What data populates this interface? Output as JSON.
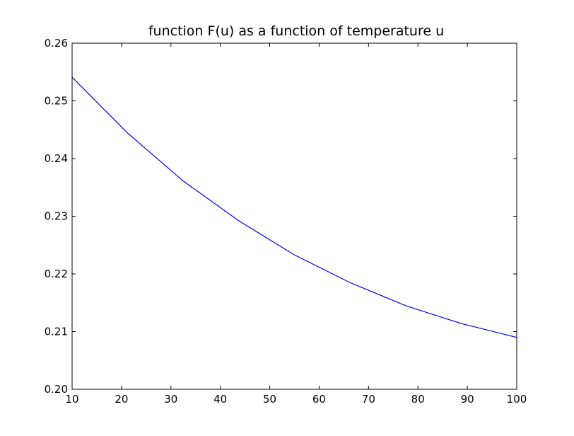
{
  "chart_data": {
    "type": "line",
    "title": "function F(u) as a function of temperature u",
    "xlabel": "",
    "ylabel": "",
    "xlim": [
      10,
      100
    ],
    "ylim": [
      0.2,
      0.26
    ],
    "xticks": [
      10,
      20,
      30,
      40,
      50,
      60,
      70,
      80,
      90,
      100
    ],
    "yticks": [
      0.2,
      0.21,
      0.22,
      0.23,
      0.24,
      0.25,
      0.26
    ],
    "xtick_labels": [
      "10",
      "20",
      "30",
      "40",
      "50",
      "60",
      "70",
      "80",
      "90",
      "100"
    ],
    "ytick_labels": [
      "0.20",
      "0.21",
      "0.22",
      "0.23",
      "0.24",
      "0.25",
      "0.26"
    ],
    "grid": false,
    "legend": "none",
    "series": [
      {
        "color": "#0000ff",
        "x": [
          10,
          21.25,
          32.5,
          43.75,
          55,
          66.25,
          77.5,
          88.75,
          100
        ],
        "y": [
          0.2541,
          0.2444,
          0.2361,
          0.2292,
          0.2233,
          0.2185,
          0.2145,
          0.2114,
          0.209
        ]
      }
    ]
  }
}
